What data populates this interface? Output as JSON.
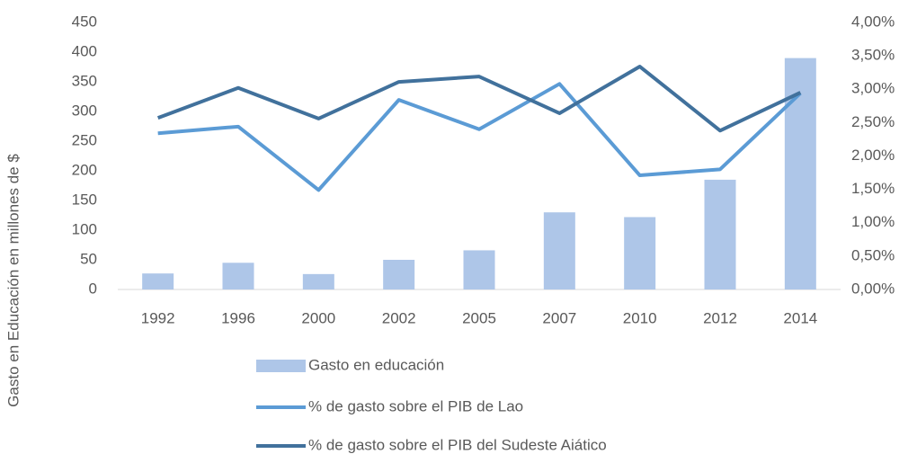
{
  "chart_data": {
    "type": "bar",
    "y_label": "Gasto en Educación en millones de $",
    "categories": [
      "1992",
      "1996",
      "2000",
      "2002",
      "2005",
      "2007",
      "2010",
      "2012",
      "2014"
    ],
    "series": [
      {
        "name": "Gasto en educación",
        "type": "bar",
        "color": "#aec6e8",
        "axis": "y",
        "values": [
          27,
          45,
          26,
          50,
          66,
          130,
          122,
          185,
          390
        ]
      },
      {
        "name": "% de gasto sobre el PIB de Lao",
        "type": "line",
        "color": "#5b9bd5",
        "axis": "y2",
        "values": [
          2.34,
          2.44,
          1.49,
          2.84,
          2.4,
          3.08,
          1.71,
          1.8,
          2.94
        ]
      },
      {
        "name": "% de gasto sobre el PIB del Sudeste Aiático",
        "type": "line",
        "color": "#41719c",
        "axis": "y2",
        "values": [
          2.57,
          3.02,
          2.56,
          3.11,
          3.19,
          2.64,
          3.34,
          2.38,
          2.95
        ]
      }
    ],
    "ylim": [
      0,
      450
    ],
    "yticks": [
      0,
      50,
      100,
      150,
      200,
      250,
      300,
      350,
      400,
      450
    ],
    "y2lim": [
      0,
      4
    ],
    "y2ticks": [
      {
        "value": 0,
        "label": "0,00%"
      },
      {
        "value": 0.5,
        "label": "0,50%"
      },
      {
        "value": 1,
        "label": "1,00%"
      },
      {
        "value": 1.5,
        "label": "1,50%"
      },
      {
        "value": 2,
        "label": "2,00%"
      },
      {
        "value": 2.5,
        "label": "2,50%"
      },
      {
        "value": 3,
        "label": "3,00%"
      },
      {
        "value": 3.5,
        "label": "3,50%"
      },
      {
        "value": 4,
        "label": "4,00%"
      }
    ],
    "grid": false,
    "legend": "bottom"
  }
}
